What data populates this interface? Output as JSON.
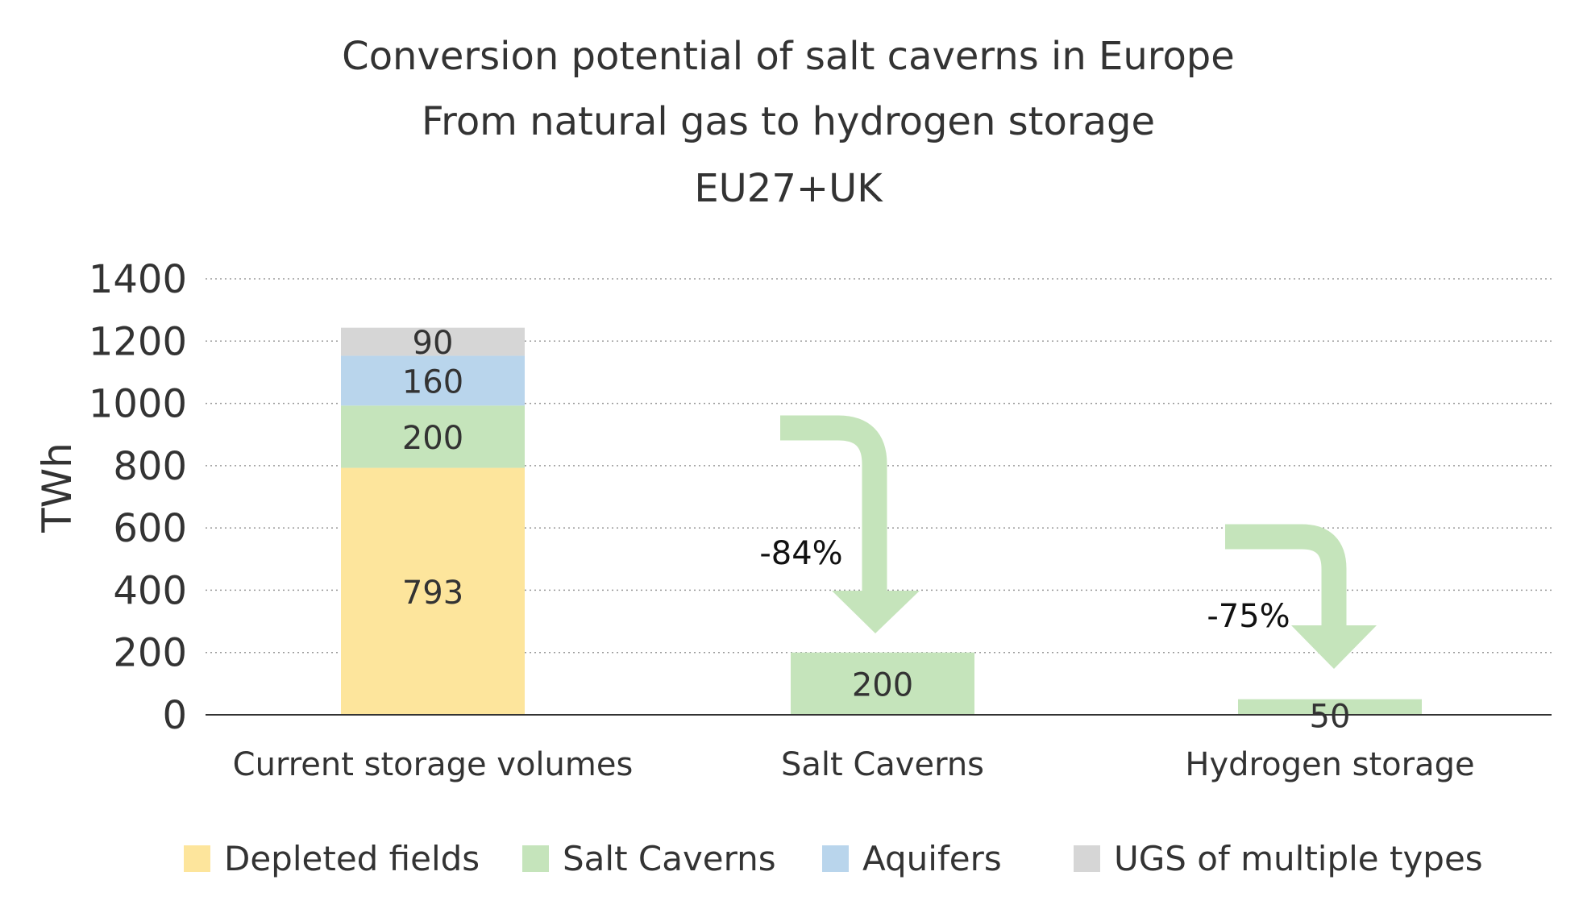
{
  "chart_data": {
    "type": "bar",
    "title_lines": [
      "Conversion potential of salt caverns in Europe",
      "From natural gas to hydrogen storage",
      "EU27+UK"
    ],
    "ylabel": "TWh",
    "ylim": [
      0,
      1400
    ],
    "yticks": [
      0,
      200,
      400,
      600,
      800,
      1000,
      1200,
      1400
    ],
    "grid": true,
    "legend_position": "bottom",
    "categories": [
      "Current storage volumes",
      "Salt Caverns",
      "Hydrogen storage"
    ],
    "series": [
      {
        "name": "Depleted fields",
        "color": "#fde59c",
        "values": [
          793,
          0,
          0
        ]
      },
      {
        "name": "Salt Caverns",
        "color": "#c5e4bb",
        "values": [
          200,
          200,
          50
        ]
      },
      {
        "name": "Aquifers",
        "color": "#b9d5ec",
        "values": [
          160,
          0,
          0
        ]
      },
      {
        "name": "UGS of multiple types",
        "color": "#d6d6d6",
        "values": [
          90,
          0,
          0
        ]
      }
    ],
    "annotations": [
      {
        "text": "-84%",
        "from_category": 0,
        "to_category": 1,
        "color": "#c5e4bb"
      },
      {
        "text": "-75%",
        "from_category": 1,
        "to_category": 2,
        "color": "#c5e4bb"
      }
    ]
  }
}
